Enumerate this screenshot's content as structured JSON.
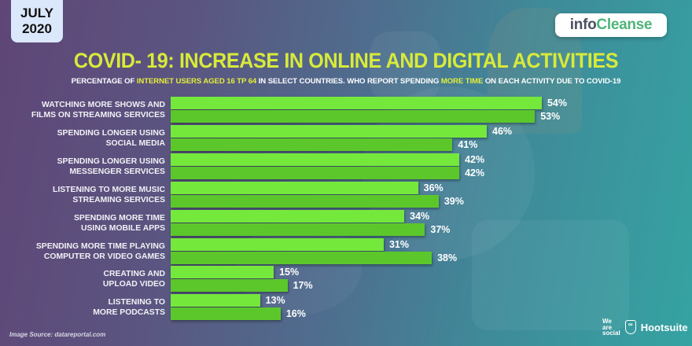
{
  "date_badge": {
    "month": "JULY",
    "year": "2020"
  },
  "brand": {
    "part1": "info",
    "part2": "Cleanse"
  },
  "title": "COVID- 19: INCREASE IN ONLINE AND DIGITAL ACTIVITIES",
  "subtitle": {
    "p1": "PERCENTAGE OF ",
    "h1": "INTERNET USERS AGED 16 TP 64",
    "p2": " IN SELECT COUNTRIES. WHO REPORT SPENDING ",
    "h2": "MORE TIME",
    "p3": " ON EACH ACTIVITY DUE TO COVID-19"
  },
  "colors": {
    "bar_series_1": "#75e83c",
    "bar_series_2": "#5cc72b",
    "title": "#d8ea3a",
    "bg_left": "#5f4677",
    "bg_right": "#35a3a2"
  },
  "chart_data": {
    "type": "bar",
    "orientation": "horizontal",
    "title": "COVID- 19: INCREASE IN ONLINE AND DIGITAL ACTIVITIES",
    "subtitle": "PERCENTAGE OF INTERNET USERS AGED 16 TP 64 IN SELECT COUNTRIES. WHO REPORT SPENDING MORE TIME ON EACH ACTIVITY DUE TO COVID-19",
    "xlabel": "",
    "ylabel": "",
    "xlim": [
      0,
      60
    ],
    "grid": false,
    "legend": null,
    "categories": [
      [
        "WATCHING MORE SHOWS AND",
        "FILMS ON STREAMING SERVICES"
      ],
      [
        "SPENDING LONGER USING",
        "SOCIAL MEDIA"
      ],
      [
        "SPENDING LONGER USING",
        "MESSENGER SERVICES"
      ],
      [
        "LISTENING TO MORE MUSIC",
        "STREAMING SERVICES"
      ],
      [
        "SPENDING MORE TIME",
        "USING MOBILE APPS"
      ],
      [
        "SPENDING MORE TIME PLAYING",
        "COMPUTER OR VIDEO GAMES"
      ],
      [
        "CREATING AND",
        "UPLOAD VIDEO"
      ],
      [
        "LISTENING TO",
        "MORE PODCASTS"
      ]
    ],
    "series": [
      {
        "name": "series_1",
        "values": [
          54,
          46,
          42,
          36,
          34,
          31,
          15,
          13
        ]
      },
      {
        "name": "series_2",
        "values": [
          53,
          41,
          42,
          39,
          37,
          38,
          17,
          16
        ]
      }
    ],
    "value_labels": [
      [
        "54%",
        "53%"
      ],
      [
        "46%",
        "41%"
      ],
      [
        "42%",
        "42%"
      ],
      [
        "36%",
        "39%"
      ],
      [
        "34%",
        "37%"
      ],
      [
        "31%",
        "38%"
      ],
      [
        "15%",
        "17%"
      ],
      [
        "13%",
        "16%"
      ]
    ]
  },
  "footer": {
    "source": "Image Source: datareportal.com",
    "partner1": [
      "We",
      "are",
      "social"
    ],
    "partner2": "Hootsuite",
    "partner2_icon": "owl-icon"
  }
}
